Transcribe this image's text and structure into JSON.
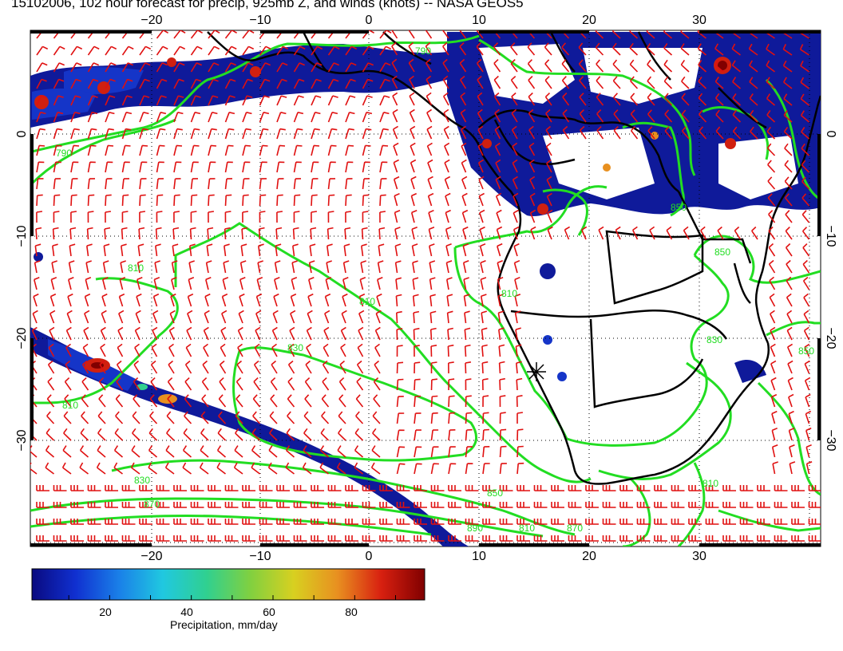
{
  "title": "15102006, 102 hour forecast for precip, 925mb Z, and winds (knots) -- NASA GEOS5",
  "axes": {
    "lon_ticks": [
      "−20",
      "−10",
      "0",
      "10",
      "20",
      "30"
    ],
    "lat_ticks": [
      "0",
      "−10",
      "−20",
      "−30"
    ]
  },
  "colorbar": {
    "label": "Precipitation, mm/day",
    "ticks": [
      "20",
      "40",
      "60",
      "80"
    ],
    "range": [
      0,
      100
    ],
    "colors": [
      "#0a0a80",
      "#1030d0",
      "#1a80e8",
      "#20c8e0",
      "#30d090",
      "#80d040",
      "#d8d020",
      "#e89020",
      "#d82010",
      "#800000"
    ]
  },
  "contours": {
    "color": "#22dd22",
    "labels": [
      "790",
      "790",
      "810",
      "810",
      "810",
      "830",
      "830",
      "850",
      "870",
      "810",
      "810",
      "830",
      "850",
      "850",
      "870",
      "890",
      "810",
      "850"
    ]
  },
  "wind_barbs": {
    "color": "#e01010"
  },
  "coastline_color": "#000000"
}
